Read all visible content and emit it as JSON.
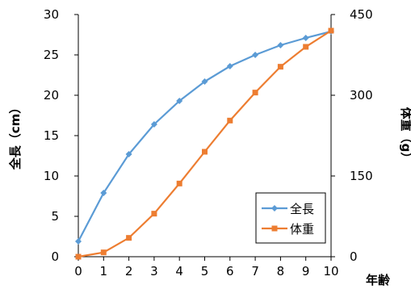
{
  "chart_data": {
    "type": "line",
    "x": [
      0,
      1,
      2,
      3,
      4,
      5,
      6,
      7,
      8,
      9,
      10
    ],
    "xlabel": "年齢",
    "xlim": [
      0,
      10
    ],
    "xticks": [
      "0",
      "1",
      "2",
      "3",
      "4",
      "5",
      "6",
      "7",
      "8",
      "9",
      "10"
    ],
    "left_axis": {
      "label": "全長（cm）",
      "ylim": [
        0,
        30
      ],
      "ticks": [
        "0",
        "5",
        "10",
        "15",
        "20",
        "25",
        "30"
      ]
    },
    "right_axis": {
      "label": "体重（g）",
      "ylim": [
        0,
        450
      ],
      "ticks": [
        "0",
        "150",
        "300",
        "450"
      ]
    },
    "grid": false,
    "legend": "bottom-right",
    "series": [
      {
        "name": "全長",
        "axis": "left",
        "color": "#5b9bd5",
        "marker": "diamond",
        "values": [
          1.9,
          7.9,
          12.7,
          16.4,
          19.3,
          21.7,
          23.6,
          25.0,
          26.2,
          27.1,
          27.9
        ]
      },
      {
        "name": "体重",
        "axis": "right",
        "color": "#ed7d31",
        "marker": "square",
        "values": [
          0,
          8,
          35,
          80,
          136,
          195,
          253,
          305,
          353,
          390,
          420
        ]
      }
    ]
  }
}
